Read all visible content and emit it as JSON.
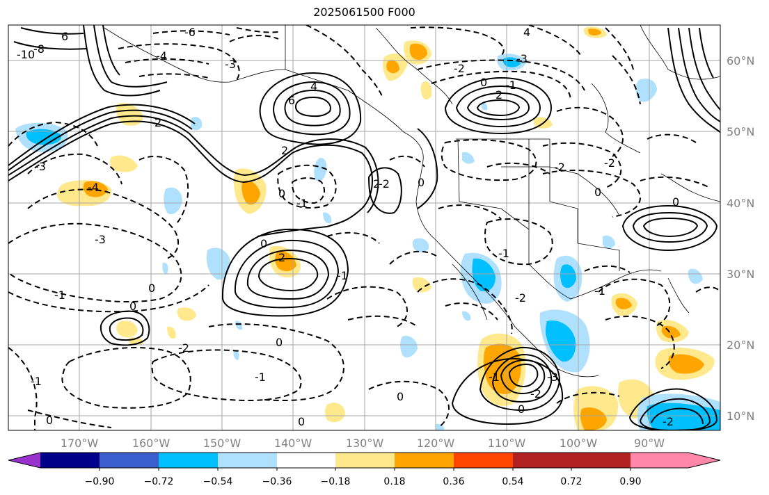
{
  "title": "2025061500 F000",
  "map": {
    "projection": "lat-lon",
    "lon_labels": [
      "170°W",
      "160°W",
      "150°W",
      "140°W",
      "130°W",
      "120°W",
      "110°W",
      "100°W",
      "90°W"
    ],
    "lat_labels": [
      "60°N",
      "50°N",
      "40°N",
      "30°N",
      "20°N",
      "10°N"
    ],
    "grid": true,
    "contour_labels": [
      "6",
      "4",
      "2",
      "0",
      "-1",
      "-2",
      "-3",
      "-4",
      "-6",
      "-8",
      "-10"
    ]
  },
  "colorbar": {
    "ticks": [
      "−0.90",
      "−0.72",
      "−0.54",
      "−0.36",
      "−0.18",
      "0.18",
      "0.36",
      "0.54",
      "0.72",
      "0.90"
    ],
    "colors": [
      "#9932cc",
      "#00008b",
      "#3a5fcd",
      "#00bfff",
      "#afe1ff",
      "#ffffff",
      "#ffe98c",
      "#ffa500",
      "#ff4500",
      "#b22222",
      "#ff88aa"
    ]
  }
}
